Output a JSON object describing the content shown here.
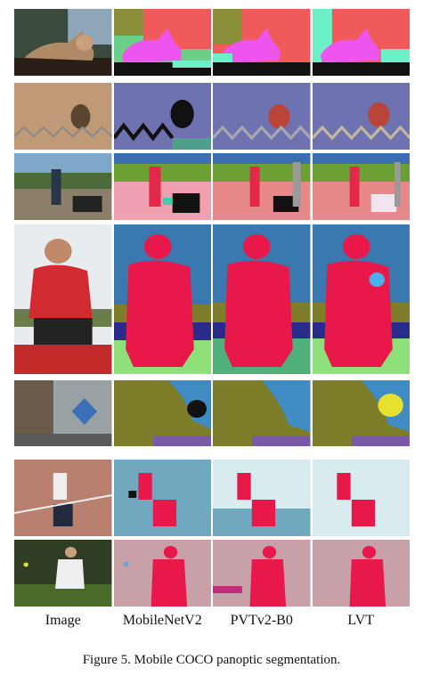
{
  "column_labels": [
    "Image",
    "MobileNetV2",
    "PVTv2-B0",
    "LVT"
  ],
  "caption": "Figure 5. Mobile COCO panoptic segmentation.",
  "rows": [
    {
      "scene": "cat by window"
    },
    {
      "scene": "bird on fence"
    },
    {
      "scene": "person on railway platform"
    },
    {
      "scene": "rugby player"
    },
    {
      "scene": "street with sign"
    },
    {
      "scene": "baseball field"
    },
    {
      "scene": "tennis player"
    }
  ]
}
